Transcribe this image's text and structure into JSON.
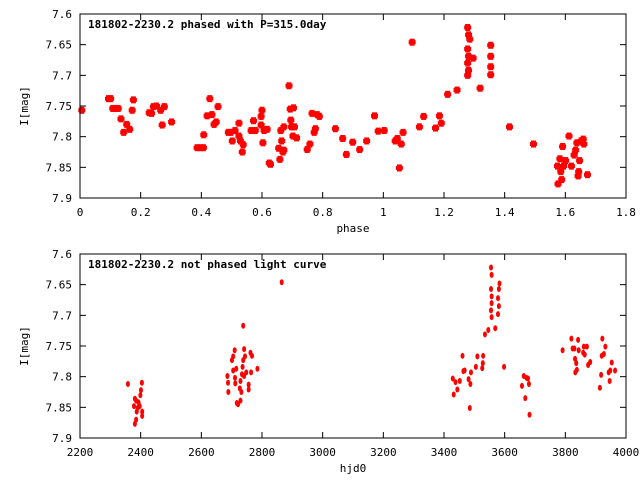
{
  "chart_data": [
    {
      "type": "scatter",
      "title": "181802-2230.2 phased with P=315.0day",
      "xlabel": "phase",
      "ylabel": "I[mag]",
      "xlim": [
        0,
        1.8
      ],
      "ylim": [
        7.6,
        7.9
      ],
      "y_inverted": true,
      "grid": false,
      "marker": "square",
      "color": "#ff0000",
      "xticks": [
        "0",
        "0.2",
        "0.4",
        "0.6",
        "0.8",
        "1",
        "1.2",
        "1.4",
        "1.6",
        "1.8"
      ],
      "yticks": [
        "7.6",
        "7.65",
        "7.7",
        "7.75",
        "7.8",
        "7.85",
        "7.9"
      ],
      "points": [
        [
          0.006,
          7.757
        ],
        [
          0.094,
          7.738
        ],
        [
          0.101,
          7.738
        ],
        [
          0.108,
          7.754
        ],
        [
          0.117,
          7.754
        ],
        [
          0.126,
          7.754
        ],
        [
          0.135,
          7.771
        ],
        [
          0.144,
          7.793
        ],
        [
          0.154,
          7.78
        ],
        [
          0.164,
          7.788
        ],
        [
          0.172,
          7.757
        ],
        [
          0.176,
          7.74
        ],
        [
          0.228,
          7.761
        ],
        [
          0.236,
          7.762
        ],
        [
          0.242,
          7.751
        ],
        [
          0.252,
          7.75
        ],
        [
          0.266,
          7.757
        ],
        [
          0.271,
          7.781
        ],
        [
          0.278,
          7.751
        ],
        [
          0.302,
          7.776
        ],
        [
          0.386,
          7.818
        ],
        [
          0.398,
          7.818
        ],
        [
          0.407,
          7.818
        ],
        [
          0.408,
          7.797
        ],
        [
          0.419,
          7.766
        ],
        [
          0.428,
          7.738
        ],
        [
          0.435,
          7.764
        ],
        [
          0.442,
          7.78
        ],
        [
          0.449,
          7.776
        ],
        [
          0.455,
          7.751
        ],
        [
          0.489,
          7.793
        ],
        [
          0.497,
          7.793
        ],
        [
          0.502,
          7.807
        ],
        [
          0.511,
          7.79
        ],
        [
          0.524,
          7.778
        ],
        [
          0.524,
          7.799
        ],
        [
          0.529,
          7.807
        ],
        [
          0.535,
          7.825
        ],
        [
          0.538,
          7.813
        ],
        [
          0.564,
          7.79
        ],
        [
          0.572,
          7.774
        ],
        [
          0.578,
          7.79
        ],
        [
          0.597,
          7.767
        ],
        [
          0.6,
          7.757
        ],
        [
          0.597,
          7.781
        ],
        [
          0.603,
          7.81
        ],
        [
          0.607,
          7.79
        ],
        [
          0.617,
          7.788
        ],
        [
          0.624,
          7.843
        ],
        [
          0.628,
          7.845
        ],
        [
          0.655,
          7.819
        ],
        [
          0.659,
          7.837
        ],
        [
          0.662,
          7.79
        ],
        [
          0.665,
          7.807
        ],
        [
          0.669,
          7.825
        ],
        [
          0.672,
          7.784
        ],
        [
          0.672,
          7.822
        ],
        [
          0.689,
          7.717
        ],
        [
          0.693,
          7.755
        ],
        [
          0.695,
          7.773
        ],
        [
          0.697,
          7.784
        ],
        [
          0.702,
          7.799
        ],
        [
          0.704,
          7.753
        ],
        [
          0.707,
          7.784
        ],
        [
          0.714,
          7.802
        ],
        [
          0.749,
          7.821
        ],
        [
          0.758,
          7.812
        ],
        [
          0.765,
          7.762
        ],
        [
          0.772,
          7.793
        ],
        [
          0.776,
          7.787
        ],
        [
          0.782,
          7.764
        ],
        [
          0.789,
          7.767
        ],
        [
          0.842,
          7.787
        ],
        [
          0.866,
          7.803
        ],
        [
          0.878,
          7.829
        ],
        [
          0.899,
          7.809
        ],
        [
          0.922,
          7.821
        ],
        [
          0.945,
          7.807
        ],
        [
          0.971,
          7.766
        ],
        [
          0.983,
          7.791
        ],
        [
          1.003,
          7.79
        ],
        [
          1.039,
          7.807
        ],
        [
          1.046,
          7.803
        ],
        [
          1.053,
          7.851
        ],
        [
          1.059,
          7.812
        ],
        [
          1.065,
          7.793
        ],
        [
          1.095,
          7.646
        ],
        [
          1.119,
          7.784
        ],
        [
          1.133,
          7.767
        ],
        [
          1.172,
          7.786
        ],
        [
          1.185,
          7.766
        ],
        [
          1.191,
          7.778
        ],
        [
          1.212,
          7.731
        ],
        [
          1.243,
          7.724
        ],
        [
          1.278,
          7.622
        ],
        [
          1.281,
          7.634
        ],
        [
          1.278,
          7.657
        ],
        [
          1.281,
          7.669
        ],
        [
          1.278,
          7.68
        ],
        [
          1.281,
          7.692
        ],
        [
          1.278,
          7.7
        ],
        [
          1.296,
          7.672
        ],
        [
          1.285,
          7.641
        ],
        [
          1.319,
          7.721
        ],
        [
          1.354,
          7.651
        ],
        [
          1.354,
          7.669
        ],
        [
          1.354,
          7.686
        ],
        [
          1.354,
          7.699
        ],
        [
          1.416,
          7.784
        ],
        [
          1.495,
          7.812
        ],
        [
          1.574,
          7.848
        ],
        [
          1.576,
          7.877
        ],
        [
          1.582,
          7.836
        ],
        [
          1.585,
          7.857
        ],
        [
          1.588,
          7.87
        ],
        [
          1.591,
          7.816
        ],
        [
          1.594,
          7.848
        ],
        [
          1.601,
          7.839
        ],
        [
          1.612,
          7.799
        ],
        [
          1.62,
          7.848
        ],
        [
          1.629,
          7.83
        ],
        [
          1.634,
          7.822
        ],
        [
          1.638,
          7.81
        ],
        [
          1.642,
          7.864
        ],
        [
          1.644,
          7.857
        ],
        [
          1.647,
          7.839
        ],
        [
          1.652,
          7.807
        ],
        [
          1.659,
          7.804
        ],
        [
          1.661,
          7.812
        ],
        [
          1.673,
          7.862
        ]
      ]
    },
    {
      "type": "scatter",
      "title": "181802-2230.2 not phased light curve",
      "xlabel": "hjd0",
      "ylabel": "I[mag]",
      "xlim": [
        2200,
        4000
      ],
      "ylim": [
        7.6,
        7.9
      ],
      "y_inverted": true,
      "grid": false,
      "marker": "dot",
      "color": "#ff0000",
      "xticks": [
        "2200",
        "2400",
        "2600",
        "2800",
        "3000",
        "3200",
        "3400",
        "3600",
        "3800",
        "4000"
      ],
      "yticks": [
        "7.6",
        "7.65",
        "7.7",
        "7.75",
        "7.8",
        "7.85",
        "7.9"
      ],
      "points": [
        [
          2358,
          7.812
        ],
        [
          2378,
          7.848
        ],
        [
          2381,
          7.877
        ],
        [
          2385,
          7.87
        ],
        [
          2381,
          7.836
        ],
        [
          2387,
          7.857
        ],
        [
          2385,
          7.839
        ],
        [
          2393,
          7.842
        ],
        [
          2399,
          7.83
        ],
        [
          2401,
          7.822
        ],
        [
          2404,
          7.81
        ],
        [
          2405,
          7.857
        ],
        [
          2405,
          7.864
        ],
        [
          2397,
          7.848
        ],
        [
          2390,
          7.851
        ],
        [
          2686,
          7.799
        ],
        [
          2688,
          7.81
        ],
        [
          2689,
          7.825
        ],
        [
          2701,
          7.773
        ],
        [
          2705,
          7.767
        ],
        [
          2710,
          7.757
        ],
        [
          2711,
          7.802
        ],
        [
          2712,
          7.811
        ],
        [
          2705,
          7.79
        ],
        [
          2715,
          7.787
        ],
        [
          2717,
          7.843
        ],
        [
          2721,
          7.845
        ],
        [
          2727,
          7.819
        ],
        [
          2729,
          7.807
        ],
        [
          2729,
          7.839
        ],
        [
          2732,
          7.825
        ],
        [
          2736,
          7.784
        ],
        [
          2738,
          7.773
        ],
        [
          2738,
          7.717
        ],
        [
          2741,
          7.755
        ],
        [
          2741,
          7.799
        ],
        [
          2744,
          7.767
        ],
        [
          2748,
          7.793
        ],
        [
          2756,
          7.813
        ],
        [
          2756,
          7.821
        ],
        [
          2762,
          7.761
        ],
        [
          2764,
          7.793
        ],
        [
          2767,
          7.766
        ],
        [
          2785,
          7.787
        ],
        [
          2734,
          7.796
        ],
        [
          2865,
          7.646
        ],
        [
          3429,
          7.803
        ],
        [
          3432,
          7.829
        ],
        [
          3438,
          7.809
        ],
        [
          3444,
          7.821
        ],
        [
          3452,
          7.807
        ],
        [
          3461,
          7.766
        ],
        [
          3464,
          7.791
        ],
        [
          3468,
          7.79
        ],
        [
          3481,
          7.804
        ],
        [
          3485,
          7.851
        ],
        [
          3487,
          7.812
        ],
        [
          3489,
          7.793
        ],
        [
          3505,
          7.784
        ],
        [
          3510,
          7.767
        ],
        [
          3526,
          7.786
        ],
        [
          3528,
          7.778
        ],
        [
          3529,
          7.766
        ],
        [
          3535,
          7.731
        ],
        [
          3546,
          7.724
        ],
        [
          3555,
          7.622
        ],
        [
          3557,
          7.634
        ],
        [
          3555,
          7.657
        ],
        [
          3557,
          7.669
        ],
        [
          3557,
          7.68
        ],
        [
          3555,
          7.692
        ],
        [
          3557,
          7.703
        ],
        [
          3569,
          7.721
        ],
        [
          3578,
          7.698
        ],
        [
          3581,
          7.657
        ],
        [
          3583,
          7.648
        ],
        [
          3578,
          7.672
        ],
        [
          3581,
          7.685
        ],
        [
          3598,
          7.784
        ],
        [
          3657,
          7.815
        ],
        [
          3663,
          7.799
        ],
        [
          3668,
          7.835
        ],
        [
          3672,
          7.802
        ],
        [
          3677,
          7.803
        ],
        [
          3680,
          7.812
        ],
        [
          3682,
          7.862
        ],
        [
          3791,
          7.757
        ],
        [
          3820,
          7.738
        ],
        [
          3824,
          7.754
        ],
        [
          3830,
          7.754
        ],
        [
          3832,
          7.771
        ],
        [
          3836,
          7.778
        ],
        [
          3833,
          7.793
        ],
        [
          3838,
          7.789
        ],
        [
          3842,
          7.74
        ],
        [
          3844,
          7.757
        ],
        [
          3859,
          7.761
        ],
        [
          3861,
          7.751
        ],
        [
          3864,
          7.764
        ],
        [
          3871,
          7.751
        ],
        [
          3875,
          7.781
        ],
        [
          3882,
          7.776
        ],
        [
          3914,
          7.818
        ],
        [
          3918,
          7.797
        ],
        [
          3920,
          7.766
        ],
        [
          3922,
          7.738
        ],
        [
          3927,
          7.763
        ],
        [
          3932,
          7.751
        ],
        [
          3943,
          7.793
        ],
        [
          3946,
          7.807
        ],
        [
          3948,
          7.79
        ],
        [
          3953,
          7.777
        ],
        [
          3964,
          7.79
        ]
      ]
    }
  ]
}
